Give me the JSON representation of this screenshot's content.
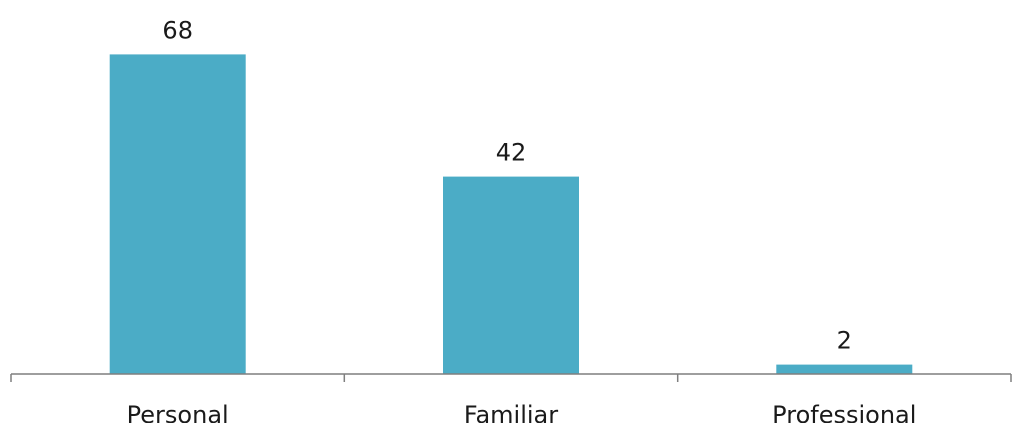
{
  "chart_data": {
    "type": "bar",
    "categories": [
      "Personal",
      "Familiar",
      "Professional"
    ],
    "values": [
      68,
      42,
      2
    ],
    "data_labels": [
      "68",
      "42",
      "2"
    ],
    "title": "",
    "xlabel": "",
    "ylabel": "",
    "ylim": [
      0,
      70
    ],
    "grid": false,
    "legend": "none",
    "bar_color": "#4BACC6",
    "axis_color": "#7f7f7f"
  }
}
